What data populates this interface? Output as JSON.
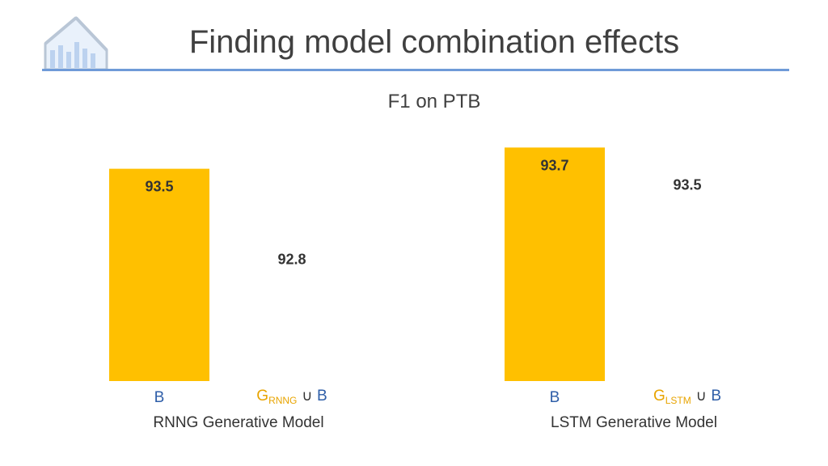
{
  "header": {
    "title": "Finding model combination effects"
  },
  "chart_data": {
    "type": "bar",
    "title": "F1 on PTB",
    "xlabel": "",
    "ylabel": "",
    "ylim": [
      91.5,
      94.0
    ],
    "grid": false,
    "bar_color": "#ffc000",
    "groups": [
      {
        "label": "RNNG Generative Model",
        "bars": [
          {
            "category": "B",
            "value": 93.5,
            "label": "93.5",
            "filled": true
          },
          {
            "category": {
              "g": "G",
              "sub": "RNNG",
              "op": "∪",
              "b": "B"
            },
            "value": 92.8,
            "label": "92.8",
            "filled": false
          }
        ]
      },
      {
        "label": "LSTM Generative Model",
        "bars": [
          {
            "category": "B",
            "value": 93.7,
            "label": "93.7",
            "filled": true
          },
          {
            "category": {
              "g": "G",
              "sub": "LSTM",
              "op": "∪",
              "b": "B"
            },
            "value": 93.5,
            "label": "93.5",
            "filled": false
          }
        ]
      }
    ]
  }
}
